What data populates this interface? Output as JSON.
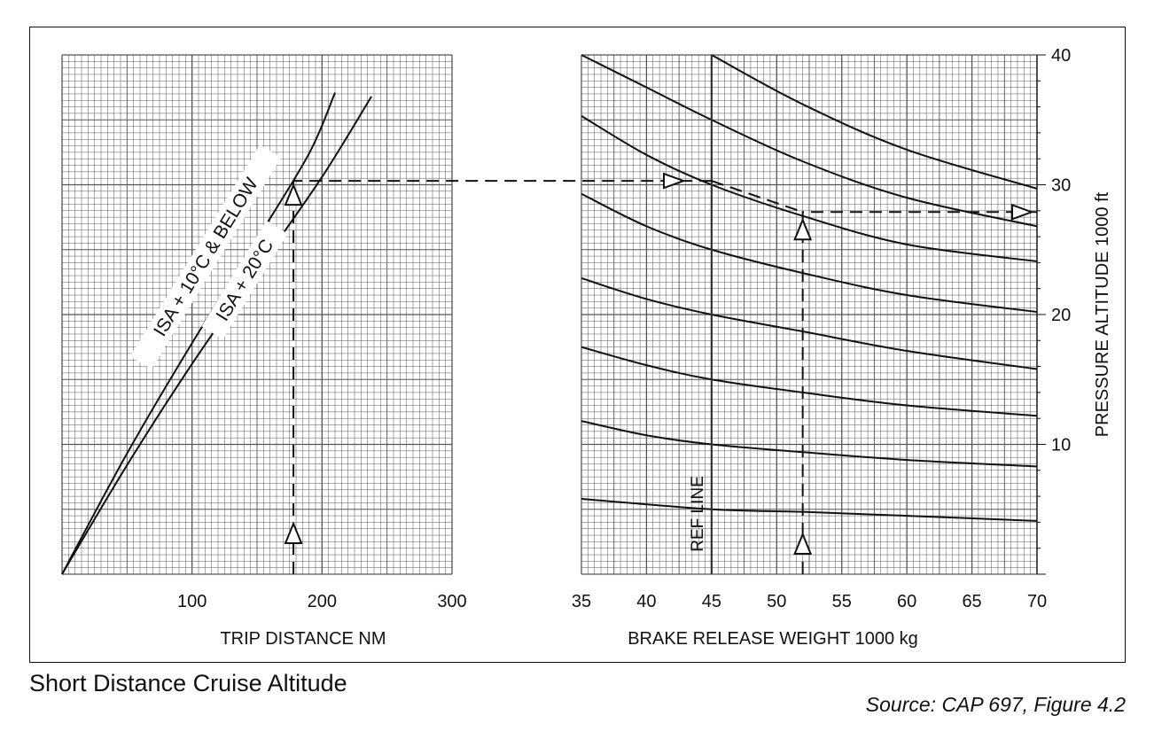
{
  "caption": "Short Distance Cruise Altitude",
  "source": "Source: CAP 697, Figure 4.2",
  "chart_data": [
    {
      "type": "line",
      "panel": "trip-distance",
      "xlabel": "TRIP DISTANCE  NM",
      "xlim": [
        0,
        300
      ],
      "x_ticks": [
        "100",
        "200",
        "300"
      ],
      "ylim": [
        0,
        40
      ],
      "series": [
        {
          "name": "ISA + 10°C & BELOW",
          "points": [
            [
              0,
              0
            ],
            [
              50,
              9.3
            ],
            [
              100,
              17.8
            ],
            [
              150,
              25.8
            ],
            [
              190,
              32.4
            ],
            [
              210,
              37.1
            ]
          ]
        },
        {
          "name": "ISA + 20°C",
          "points": [
            [
              0,
              0
            ],
            [
              50,
              8.4
            ],
            [
              100,
              16.2
            ],
            [
              150,
              23.4
            ],
            [
              200,
              30.6
            ],
            [
              238,
              36.8
            ]
          ]
        }
      ],
      "example_path": {
        "trip_distance": 178,
        "altitude": 30.3
      }
    },
    {
      "type": "line",
      "panel": "brake-release-weight",
      "xlabel": "BRAKE RELEASE WEIGHT    1000 kg",
      "xlim": [
        35,
        70
      ],
      "x_ticks": [
        "35",
        "40",
        "45",
        "50",
        "55",
        "60",
        "65",
        "70"
      ],
      "ylabel": "PRESSURE ALTITUDE   1000 ft",
      "ylim": [
        0,
        40
      ],
      "y_ticks": [
        "10",
        "20",
        "30",
        "40"
      ],
      "ref_line": {
        "label": "REF LINE",
        "x": 45
      },
      "series": [
        {
          "points": [
            [
              35,
              5.8
            ],
            [
              45,
              5.0
            ],
            [
              52,
              4.8
            ],
            [
              60,
              4.5
            ],
            [
              70,
              4.1
            ]
          ]
        },
        {
          "points": [
            [
              35,
              11.8
            ],
            [
              40,
              10.7
            ],
            [
              45,
              10.0
            ],
            [
              52,
              9.4
            ],
            [
              60,
              8.8
            ],
            [
              70,
              8.3
            ]
          ]
        },
        {
          "points": [
            [
              35,
              17.5
            ],
            [
              40,
              16.1
            ],
            [
              45,
              15.0
            ],
            [
              52,
              14.0
            ],
            [
              60,
              13.0
            ],
            [
              70,
              12.2
            ]
          ]
        },
        {
          "points": [
            [
              35,
              22.8
            ],
            [
              40,
              21.2
            ],
            [
              45,
              20.0
            ],
            [
              52,
              18.7
            ],
            [
              60,
              17.2
            ],
            [
              70,
              15.8
            ]
          ]
        },
        {
          "points": [
            [
              35,
              29.3
            ],
            [
              40,
              26.8
            ],
            [
              45,
              25.0
            ],
            [
              52,
              23.2
            ],
            [
              60,
              21.5
            ],
            [
              70,
              20.2
            ]
          ]
        },
        {
          "points": [
            [
              35,
              35.3
            ],
            [
              40,
              32.3
            ],
            [
              45,
              30.0
            ],
            [
              52,
              27.6
            ],
            [
              60,
              25.4
            ],
            [
              70,
              24.1
            ]
          ]
        },
        {
          "points": [
            [
              35,
              40.0
            ],
            [
              40,
              37.5
            ],
            [
              45,
              35.0
            ],
            [
              52,
              31.8
            ],
            [
              60,
              29.0
            ],
            [
              70,
              26.8
            ]
          ]
        },
        {
          "points": [
            [
              45,
              40.0
            ],
            [
              52,
              36.2
            ],
            [
              60,
              32.7
            ],
            [
              70,
              29.7
            ]
          ]
        }
      ],
      "example_path": {
        "ref_altitude": 30.3,
        "weight": 52,
        "result_altitude": 27.9
      }
    }
  ],
  "curve_labels": [
    "ISA + 10°C & BELOW",
    "ISA + 20°C"
  ]
}
